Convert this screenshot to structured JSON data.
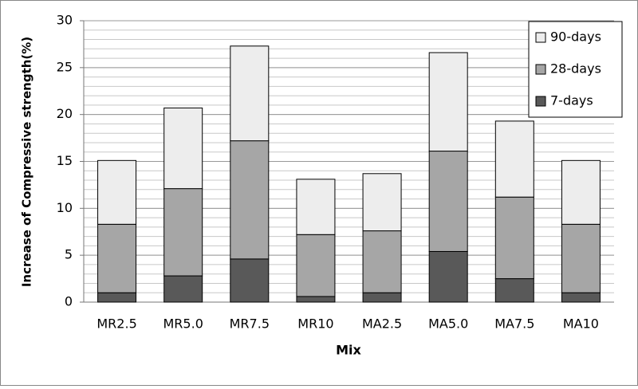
{
  "chart_data": {
    "type": "stacked_bar",
    "x_label": "Mix",
    "y_label": "Increase of Compressive strength(%)",
    "categories": [
      "MR2.5",
      "MR5.0",
      "MR7.5",
      "MR10",
      "MA2.5",
      "MA5.0",
      "MA7.5",
      "MA10"
    ],
    "series": [
      {
        "name": "7-days",
        "color": "#595959",
        "values": [
          1.0,
          2.8,
          4.6,
          0.6,
          1.0,
          5.4,
          2.5,
          1.0
        ]
      },
      {
        "name": "28-days",
        "color": "#a6a6a6",
        "values": [
          7.3,
          9.3,
          12.6,
          6.6,
          6.6,
          10.7,
          8.7,
          7.3
        ]
      },
      {
        "name": "90-days",
        "color": "#ededed",
        "values": [
          6.8,
          8.6,
          10.1,
          5.9,
          6.1,
          10.5,
          8.1,
          6.8
        ]
      }
    ],
    "ylim": [
      0,
      30
    ],
    "yticks": [
      0,
      5,
      10,
      15,
      20,
      25,
      30
    ],
    "grid": true,
    "grid_step": 1,
    "legend": "top-right"
  }
}
